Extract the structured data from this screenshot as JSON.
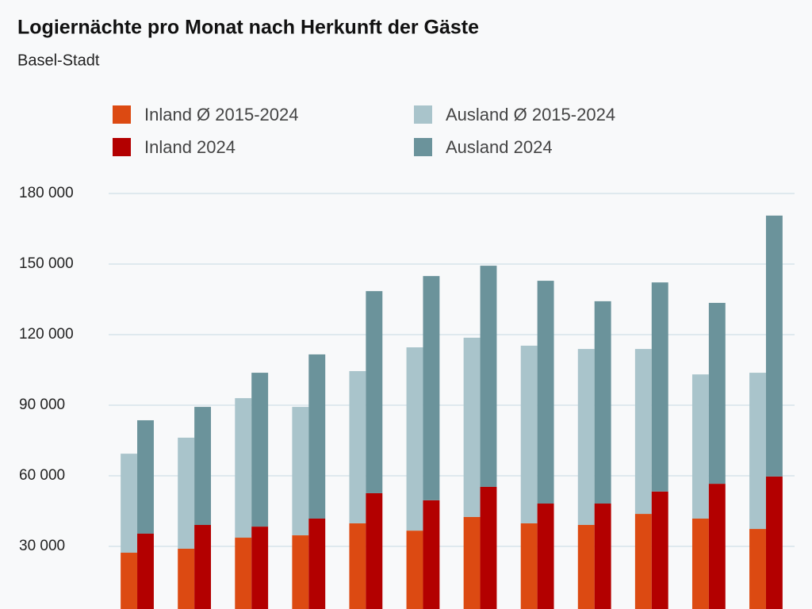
{
  "chart_data": {
    "type": "bar",
    "stacked": true,
    "title": "Logiernächte pro Monat nach Herkunft der Gäste",
    "subtitle": "Basel-Stadt",
    "categories": [
      null,
      null,
      null,
      null,
      null,
      null,
      null,
      null,
      null,
      null,
      null,
      null
    ],
    "stacks": [
      {
        "series": [
          {
            "name": "Inland Ø 2015-2024",
            "color": "#dc4a12",
            "values": [
              27300,
              29000,
              33700,
              34700,
              39800,
              36700,
              42500,
              39800,
              39100,
              43800,
              41800,
              37400
            ]
          },
          {
            "name": "Ausland Ø 2015-2024",
            "color": "#a9c4cb",
            "values": [
              42100,
              47200,
              59300,
              54600,
              64700,
              77900,
              76200,
              75500,
              74800,
              70100,
              61300,
              66400
            ]
          }
        ]
      },
      {
        "series": [
          {
            "name": "Inland 2024",
            "color": "#b30000",
            "values": [
              35400,
              39100,
              38400,
              41800,
              52600,
              49600,
              55300,
              48200,
              48200,
              53300,
              56600,
              59700
            ]
          },
          {
            "name": "Ausland 2024",
            "color": "#6b939b",
            "values": [
              48200,
              50200,
              65400,
              69800,
              85900,
              95300,
              94000,
              94700,
              86000,
              88900,
              76900,
              110900
            ]
          }
        ]
      }
    ],
    "ylim": [
      0,
      180000
    ],
    "yticks": [
      {
        "value": 30000,
        "label": "30 000"
      },
      {
        "value": 60000,
        "label": "60 000"
      },
      {
        "value": 90000,
        "label": "90 000"
      },
      {
        "value": 120000,
        "label": "120 000"
      },
      {
        "value": 150000,
        "label": "150 000"
      },
      {
        "value": 180000,
        "label": "180 000"
      }
    ],
    "grid": true
  }
}
